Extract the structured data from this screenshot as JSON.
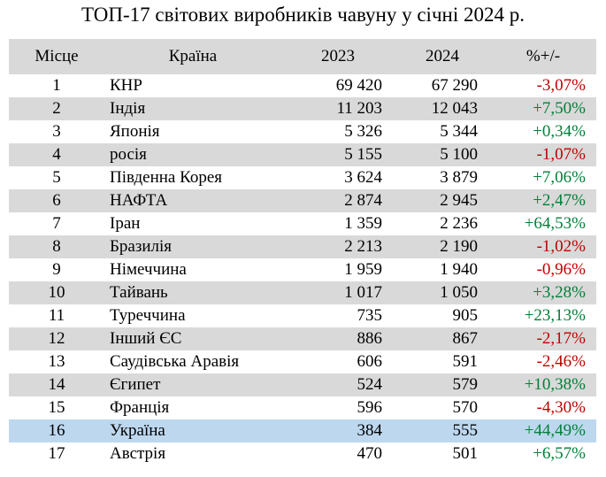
{
  "title": "ТОП-17 світових виробників чавуну у січні 2024 р.",
  "colors": {
    "header_bg": "#d9d9d9",
    "alt_row_bg": "#d9d9d9",
    "highlight_bg": "#bdd7ee",
    "negative": "#c00000",
    "positive": "#00803a"
  },
  "headers": {
    "rank": "Місце",
    "country": "Країна",
    "y2023": "2023",
    "y2024": "2024",
    "change": "%+/-"
  },
  "rows": [
    {
      "rank": "1",
      "country": "КНР",
      "y2023": "69 420",
      "y2024": "67 290",
      "change": "-3,07%"
    },
    {
      "rank": "2",
      "country": "Індія",
      "y2023": "11 203",
      "y2024": "12 043",
      "change": "+7,50%"
    },
    {
      "rank": "3",
      "country": "Японія",
      "y2023": "5 326",
      "y2024": "5 344",
      "change": "+0,34%"
    },
    {
      "rank": "4",
      "country": "росія",
      "y2023": "5 155",
      "y2024": "5 100",
      "change": "-1,07%"
    },
    {
      "rank": "5",
      "country": "Південна Корея",
      "y2023": "3 624",
      "y2024": "3 879",
      "change": "+7,06%"
    },
    {
      "rank": "6",
      "country": "НАФТА",
      "y2023": "2 874",
      "y2024": "2 945",
      "change": "+2,47%"
    },
    {
      "rank": "7",
      "country": "Іран",
      "y2023": "1 359",
      "y2024": "2 236",
      "change": "+64,53%"
    },
    {
      "rank": "8",
      "country": "Бразилія",
      "y2023": "2 213",
      "y2024": "2 190",
      "change": "-1,02%"
    },
    {
      "rank": "9",
      "country": "Німеччина",
      "y2023": "1 959",
      "y2024": "1 940",
      "change": "-0,96%"
    },
    {
      "rank": "10",
      "country": "Тайвань",
      "y2023": "1 017",
      "y2024": "1 050",
      "change": "+3,28%"
    },
    {
      "rank": "11",
      "country": "Туреччина",
      "y2023": "735",
      "y2024": "905",
      "change": "+23,13%"
    },
    {
      "rank": "12",
      "country": "Інший ЄС",
      "y2023": "886",
      "y2024": "867",
      "change": "-2,17%"
    },
    {
      "rank": "13",
      "country": "Саудівська Аравія",
      "y2023": "606",
      "y2024": "591",
      "change": "-2,46%"
    },
    {
      "rank": "14",
      "country": "Єгипет",
      "y2023": "524",
      "y2024": "579",
      "change": "+10,38%"
    },
    {
      "rank": "15",
      "country": "Франція",
      "y2023": "596",
      "y2024": "570",
      "change": "-4,30%"
    },
    {
      "rank": "16",
      "country": "Україна",
      "y2023": "384",
      "y2024": "555",
      "change": "+44,49%",
      "highlight": true
    },
    {
      "rank": "17",
      "country": "Австрія",
      "y2023": "470",
      "y2024": "501",
      "change": "+6,57%"
    }
  ]
}
